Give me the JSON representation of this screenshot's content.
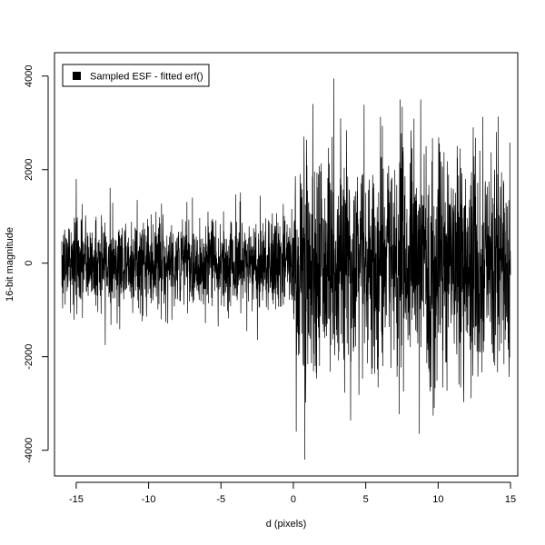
{
  "chart_data": {
    "type": "line",
    "title": "",
    "xlabel": "d (pixels)",
    "ylabel": "16-bit magnitude",
    "xlim": [
      -16.5,
      15.5
    ],
    "ylim": [
      -4550,
      4500
    ],
    "x_ticks": [
      -15,
      -10,
      -5,
      0,
      5,
      10,
      15
    ],
    "y_ticks": [
      -4000,
      -2000,
      0,
      2000,
      4000
    ],
    "x_tick_labels": [
      "-15",
      "-10",
      "-5",
      "0",
      "5",
      "10",
      "15"
    ],
    "y_tick_labels": [
      "-4000",
      "-2000",
      "0",
      "2000",
      "4000"
    ],
    "grid": false,
    "legend": {
      "placement": "top-left",
      "entries": [
        "Sampled ESF - fitted erf()"
      ]
    },
    "series": [
      {
        "name": "Sampled ESF - fitted erf()",
        "color": "#000000",
        "x_range": [
          -16,
          15
        ],
        "segments": [
          {
            "x_range": [
              -16,
              0
            ],
            "approx_spread": 500,
            "approx_min": -1750,
            "approx_max": 1800
          },
          {
            "x_range": [
              0,
              15
            ],
            "approx_spread": 1200,
            "approx_min": -4200,
            "approx_max": 3950
          }
        ],
        "extremes": [
          {
            "x": 0.8,
            "y": 3800
          },
          {
            "x": 2.8,
            "y": 3950
          },
          {
            "x": 0.8,
            "y": -4200
          },
          {
            "x": 0.2,
            "y": -3600
          },
          {
            "x": 8.7,
            "y": -3650
          },
          {
            "x": 8.8,
            "y": 3500
          },
          {
            "x": -13.0,
            "y": -1750
          },
          {
            "x": -15.0,
            "y": 1800
          }
        ]
      }
    ]
  }
}
